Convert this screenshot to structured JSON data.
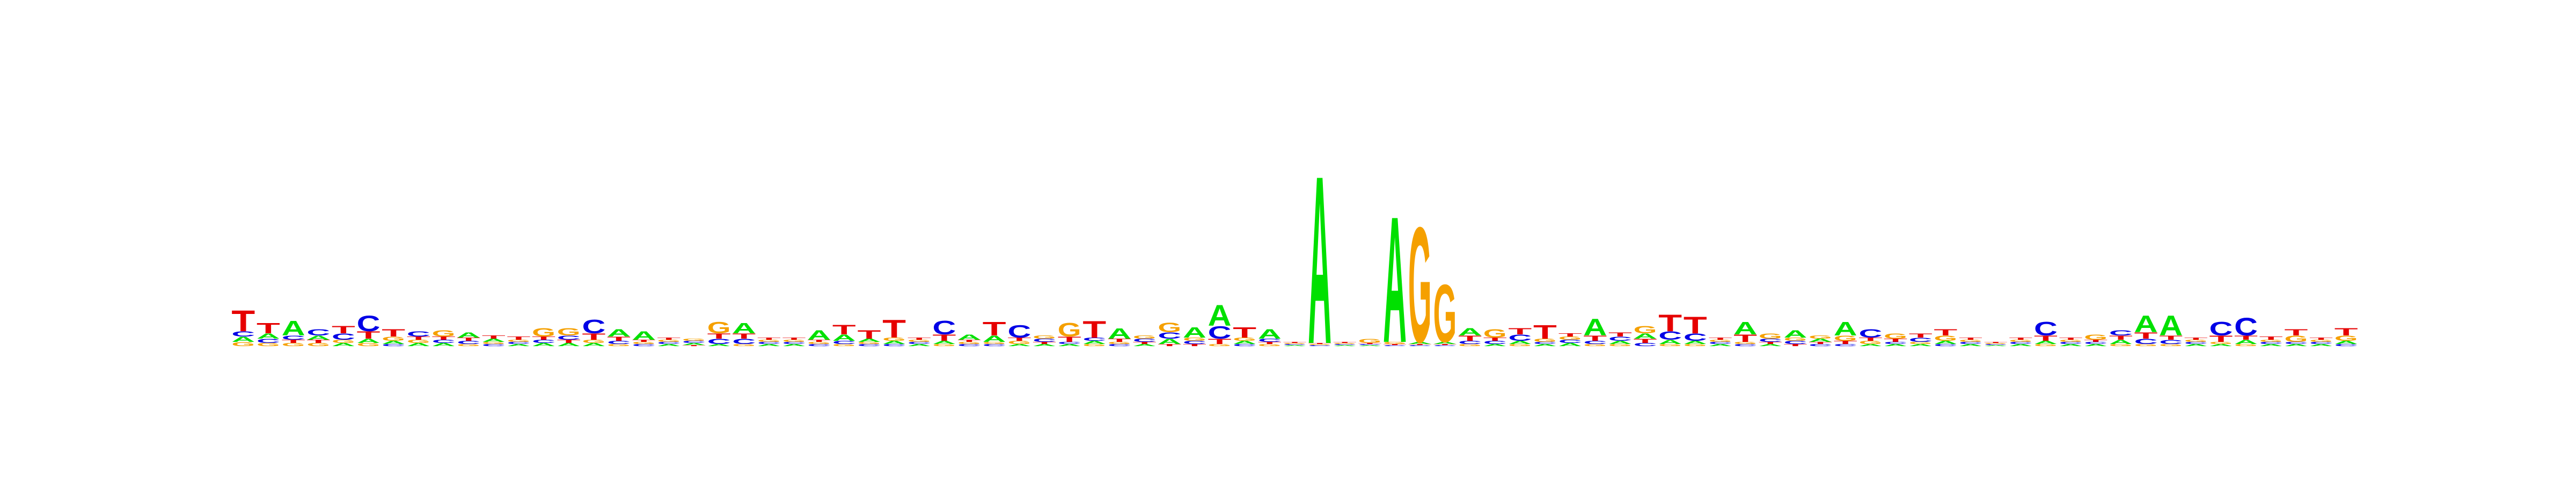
{
  "chart_data": {
    "type": "sequence-logo",
    "title": "",
    "xlabel": "",
    "ylabel": "",
    "colors": {
      "A": "#00e000",
      "C": "#0000e6",
      "G": "#f5a000",
      "T": "#e60000"
    },
    "x_tick_labels": [],
    "y_tick_labels": [],
    "axes_visible": false,
    "positions": [
      {
        "A": 0.05,
        "C": 0.05,
        "G": 0.04,
        "T": 0.2
      },
      {
        "A": 0.05,
        "C": 0.04,
        "G": 0.03,
        "T": 0.1
      },
      {
        "A": 0.14,
        "C": 0.04,
        "G": 0.03,
        "T": 0.03
      },
      {
        "A": 0.04,
        "C": 0.06,
        "G": 0.03,
        "T": 0.03
      },
      {
        "A": 0.03,
        "C": 0.06,
        "G": 0.03,
        "T": 0.07
      },
      {
        "A": 0.04,
        "C": 0.15,
        "G": 0.03,
        "T": 0.07
      },
      {
        "A": 0.03,
        "C": 0.02,
        "G": 0.04,
        "T": 0.07
      },
      {
        "A": 0.03,
        "C": 0.05,
        "G": 0.03,
        "T": 0.03
      },
      {
        "A": 0.03,
        "C": 0.03,
        "G": 0.06,
        "T": 0.03
      },
      {
        "A": 0.05,
        "C": 0.03,
        "G": 0.02,
        "T": 0.03
      },
      {
        "A": 0.03,
        "C": 0.02,
        "G": 0.02,
        "T": 0.03
      },
      {
        "A": 0.02,
        "C": 0.02,
        "G": 0.02,
        "T": 0.03
      },
      {
        "A": 0.03,
        "C": 0.03,
        "G": 0.08,
        "T": 0.03
      },
      {
        "A": 0.03,
        "C": 0.04,
        "G": 0.07,
        "T": 0.03
      },
      {
        "A": 0.03,
        "C": 0.13,
        "G": 0.03,
        "T": 0.06
      },
      {
        "A": 0.07,
        "C": 0.03,
        "G": 0.02,
        "T": 0.04
      },
      {
        "A": 0.08,
        "C": 0.02,
        "G": 0.02,
        "T": 0.02
      },
      {
        "A": 0.02,
        "C": 0.02,
        "G": 0.02,
        "T": 0.02
      },
      {
        "A": 0.02,
        "C": 0.02,
        "G": 0.02,
        "T": 0.01
      },
      {
        "A": 0.02,
        "C": 0.05,
        "G": 0.11,
        "T": 0.05
      },
      {
        "A": 0.1,
        "C": 0.05,
        "G": 0.02,
        "T": 0.05
      },
      {
        "A": 0.02,
        "C": 0.02,
        "G": 0.02,
        "T": 0.02
      },
      {
        "A": 0.02,
        "C": 0.02,
        "G": 0.02,
        "T": 0.02
      },
      {
        "A": 0.09,
        "C": 0.02,
        "G": 0.02,
        "T": 0.02
      },
      {
        "A": 0.06,
        "C": 0.03,
        "G": 0.02,
        "T": 0.09
      },
      {
        "A": 0.03,
        "C": 0.02,
        "G": 0.02,
        "T": 0.08
      },
      {
        "A": 0.03,
        "C": 0.02,
        "G": 0.03,
        "T": 0.17
      },
      {
        "A": 0.02,
        "C": 0.02,
        "G": 0.02,
        "T": 0.02
      },
      {
        "A": 0.03,
        "C": 0.13,
        "G": 0.02,
        "T": 0.06
      },
      {
        "A": 0.05,
        "C": 0.02,
        "G": 0.02,
        "T": 0.02
      },
      {
        "A": 0.06,
        "C": 0.02,
        "G": 0.02,
        "T": 0.13
      },
      {
        "A": 0.02,
        "C": 0.12,
        "G": 0.03,
        "T": 0.03
      },
      {
        "A": 0.02,
        "C": 0.03,
        "G": 0.03,
        "T": 0.02
      },
      {
        "A": 0.02,
        "C": 0.02,
        "G": 0.13,
        "T": 0.05
      },
      {
        "A": 0.03,
        "C": 0.03,
        "G": 0.02,
        "T": 0.16
      },
      {
        "A": 0.1,
        "C": 0.02,
        "G": 0.02,
        "T": 0.03
      },
      {
        "A": 0.02,
        "C": 0.03,
        "G": 0.03,
        "T": 0.02
      },
      {
        "A": 0.05,
        "C": 0.06,
        "G": 0.09,
        "T": 0.02
      },
      {
        "A": 0.1,
        "C": 0.03,
        "G": 0.03,
        "T": 0.02
      },
      {
        "A": 0.2,
        "C": 0.12,
        "G": 0.02,
        "T": 0.05
      },
      {
        "A": 0.03,
        "C": 0.02,
        "G": 0.03,
        "T": 0.1
      },
      {
        "A": 0.09,
        "C": 0.03,
        "G": 0.02,
        "T": 0.02
      },
      {
        "A": 0.01,
        "C": 0.01,
        "G": 0.01,
        "T": 0.01
      },
      {
        "A": 1.6,
        "C": 0.01,
        "G": 0.01,
        "T": 0.01
      },
      {
        "A": 0.01,
        "C": 0.01,
        "G": 0.01,
        "T": 0.01
      },
      {
        "A": 0.01,
        "C": 0.01,
        "G": 0.04,
        "T": 0.01
      },
      {
        "A": 1.2,
        "C": 0.01,
        "G": 0.02,
        "T": 0.01
      },
      {
        "A": 0.02,
        "C": 0.01,
        "G": 1.1,
        "T": 0.01
      },
      {
        "A": 0.02,
        "C": 0.01,
        "G": 0.55,
        "T": 0.01
      },
      {
        "A": 0.07,
        "C": 0.03,
        "G": 0.02,
        "T": 0.05
      },
      {
        "A": 0.02,
        "C": 0.03,
        "G": 0.08,
        "T": 0.03
      },
      {
        "A": 0.03,
        "C": 0.06,
        "G": 0.02,
        "T": 0.06
      },
      {
        "A": 0.02,
        "C": 0.02,
        "G": 0.03,
        "T": 0.13
      },
      {
        "A": 0.03,
        "C": 0.03,
        "G": 0.03,
        "T": 0.03
      },
      {
        "A": 0.16,
        "C": 0.03,
        "G": 0.02,
        "T": 0.05
      },
      {
        "A": 0.03,
        "C": 0.04,
        "G": 0.02,
        "T": 0.04
      },
      {
        "A": 0.05,
        "C": 0.03,
        "G": 0.07,
        "T": 0.04
      },
      {
        "A": 0.04,
        "C": 0.08,
        "G": 0.02,
        "T": 0.16
      },
      {
        "A": 0.03,
        "C": 0.07,
        "G": 0.02,
        "T": 0.16
      },
      {
        "A": 0.02,
        "C": 0.02,
        "G": 0.02,
        "T": 0.02
      },
      {
        "A": 0.12,
        "C": 0.02,
        "G": 0.02,
        "T": 0.07
      },
      {
        "A": 0.02,
        "C": 0.03,
        "G": 0.05,
        "T": 0.02
      },
      {
        "A": 0.07,
        "C": 0.03,
        "G": 0.03,
        "T": 0.02
      },
      {
        "A": 0.03,
        "C": 0.02,
        "G": 0.03,
        "T": 0.02
      },
      {
        "A": 0.13,
        "C": 0.02,
        "G": 0.05,
        "T": 0.03
      },
      {
        "A": 0.02,
        "C": 0.08,
        "G": 0.03,
        "T": 0.03
      },
      {
        "A": 0.02,
        "C": 0.02,
        "G": 0.05,
        "T": 0.03
      },
      {
        "A": 0.02,
        "C": 0.04,
        "G": 0.02,
        "T": 0.04
      },
      {
        "A": 0.03,
        "C": 0.02,
        "G": 0.05,
        "T": 0.06
      },
      {
        "A": 0.02,
        "C": 0.02,
        "G": 0.02,
        "T": 0.02
      },
      {
        "A": 0.01,
        "C": 0.01,
        "G": 0.01,
        "T": 0.01
      },
      {
        "A": 0.02,
        "C": 0.02,
        "G": 0.02,
        "T": 0.02
      },
      {
        "A": 0.03,
        "C": 0.13,
        "G": 0.02,
        "T": 0.05
      },
      {
        "A": 0.02,
        "C": 0.02,
        "G": 0.02,
        "T": 0.02
      },
      {
        "A": 0.02,
        "C": 0.02,
        "G": 0.05,
        "T": 0.02
      },
      {
        "A": 0.04,
        "C": 0.05,
        "G": 0.02,
        "T": 0.04
      },
      {
        "A": 0.16,
        "C": 0.05,
        "G": 0.02,
        "T": 0.06
      },
      {
        "A": 0.19,
        "C": 0.04,
        "G": 0.02,
        "T": 0.04
      },
      {
        "A": 0.02,
        "C": 0.02,
        "G": 0.02,
        "T": 0.02
      },
      {
        "A": 0.02,
        "C": 0.13,
        "G": 0.02,
        "T": 0.06
      },
      {
        "A": 0.04,
        "C": 0.17,
        "G": 0.02,
        "T": 0.04
      },
      {
        "A": 0.02,
        "C": 0.02,
        "G": 0.02,
        "T": 0.03
      },
      {
        "A": 0.02,
        "C": 0.02,
        "G": 0.06,
        "T": 0.06
      },
      {
        "A": 0.02,
        "C": 0.02,
        "G": 0.02,
        "T": 0.02
      },
      {
        "A": 0.03,
        "C": 0.02,
        "G": 0.05,
        "T": 0.07
      }
    ]
  }
}
